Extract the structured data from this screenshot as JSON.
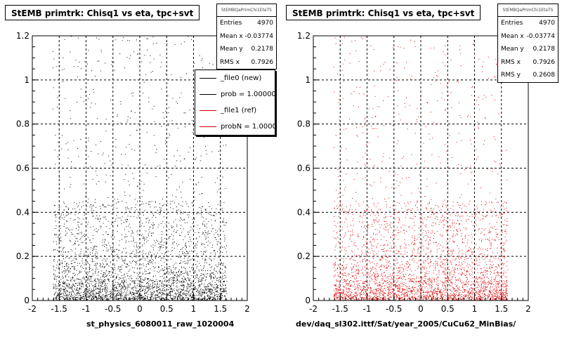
{
  "chart_data": [
    {
      "type": "scatter",
      "title": "StEMB primtrk: Chisq1 vs eta, tpc+svt",
      "xlabel": "st_physics_6080011_raw_1020004",
      "ylabel": "",
      "xlim": [
        -2,
        2
      ],
      "ylim": [
        0,
        1.2
      ],
      "xticks": [
        "-2",
        "-1.5",
        "-1",
        "-0.5",
        "0",
        "0.5",
        "1",
        "1.5",
        "2"
      ],
      "yticks": [
        "0",
        "0.2",
        "0.4",
        "0.6",
        "0.8",
        "1",
        "1.2"
      ],
      "grid": true,
      "marker_color": "#000000",
      "points": {
        "count": 4970,
        "x_range": [
          -1.62,
          1.62
        ]
      },
      "stats": {
        "name": "StEMBQaPrimChi1EtaTS",
        "rows": [
          {
            "label": "Entries",
            "value": "4970"
          },
          {
            "label": "Mean x",
            "value": "-0.03774"
          },
          {
            "label": "Mean y",
            "value": "0.2178"
          },
          {
            "label": "RMS x",
            "value": "0.7926"
          }
        ]
      },
      "legend": {
        "placement": "top-right",
        "entries": [
          {
            "label": "_file0 (new)",
            "color": "#000000"
          },
          {
            "label": "prob = 1.000000",
            "color": "#000000"
          },
          {
            "label": "_file1 (ref)",
            "color": "#d00000"
          },
          {
            "label": "probN = 1.000000",
            "color": "#d00000"
          }
        ]
      }
    },
    {
      "type": "scatter",
      "title": "StEMB primtrk: Chisq1 vs eta, tpc+svt",
      "xlabel": "dev/daq_sl302.ittf/Sat/year_2005/CuCu62_MinBias/",
      "ylabel": "",
      "xlim": [
        -2,
        2
      ],
      "ylim": [
        0,
        1.2
      ],
      "xticks": [
        "-2",
        "-1.5",
        "-1",
        "-0.5",
        "0",
        "0.5",
        "1",
        "1.5",
        "2"
      ],
      "yticks": [
        "0",
        "0.2",
        "0.4",
        "0.6",
        "0.8",
        "1",
        "1.2"
      ],
      "grid": true,
      "marker_color": "#e00000",
      "points": {
        "count": 4970,
        "x_range": [
          -1.62,
          1.62
        ]
      },
      "stats": {
        "name": "StEMBQaPrimChi1EtaTS",
        "rows": [
          {
            "label": "Entries",
            "value": "4970"
          },
          {
            "label": "Mean x",
            "value": "-0.03774"
          },
          {
            "label": "Mean y",
            "value": "0.2178"
          },
          {
            "label": "RMS x",
            "value": "0.7926"
          },
          {
            "label": "RMS y",
            "value": "0.2608"
          }
        ]
      }
    }
  ]
}
